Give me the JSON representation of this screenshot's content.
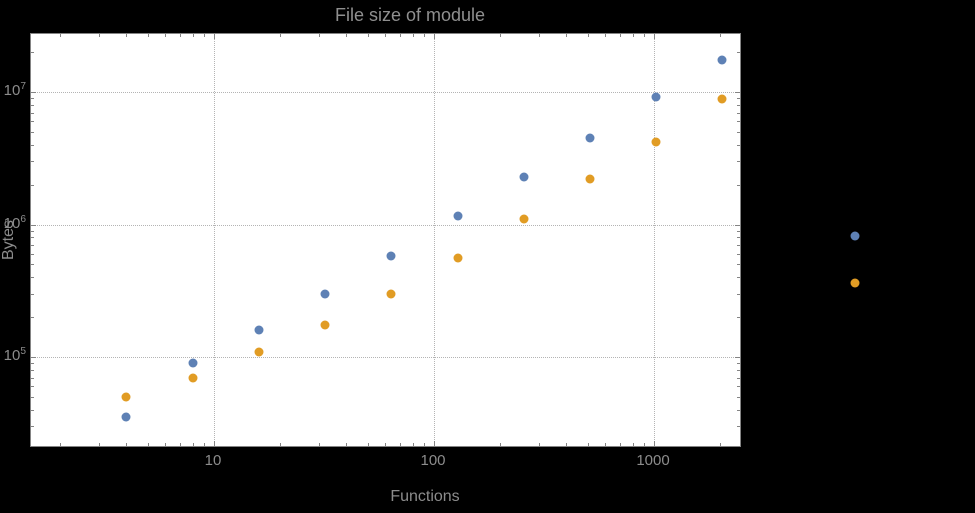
{
  "chart_data": {
    "type": "scatter",
    "title": "File size of module",
    "xlabel": "Functions",
    "ylabel": "Bytes",
    "x_scale": "log",
    "y_scale": "log",
    "grid": true,
    "x_ticks": [
      10,
      100,
      1000
    ],
    "y_tick_exponents": [
      5,
      6,
      7
    ],
    "xlim_log10": [
      0.17,
      3.4
    ],
    "ylim_log10": [
      4.35,
      7.45
    ],
    "x": [
      4,
      8,
      16,
      32,
      64,
      128,
      256,
      512,
      1024,
      2048
    ],
    "series": [
      {
        "name": "series-1-blue",
        "color": "#5e81b5",
        "values": [
          35000,
          90000,
          160000,
          300000,
          580000,
          1150000,
          2300000,
          4500000,
          9200000,
          17500000
        ]
      },
      {
        "name": "series-2-orange",
        "color": "#e19c24",
        "values": [
          50000,
          70000,
          110000,
          175000,
          300000,
          560000,
          1100000,
          2200000,
          4200000,
          8800000
        ]
      }
    ],
    "legend": {
      "position": "right-of-plot",
      "marker_colors": [
        "#5e81b5",
        "#e19c24"
      ]
    }
  },
  "colors": {
    "background": "#000000",
    "panel": "#ffffff",
    "frame": "#848484",
    "grid": "#b4b4b4",
    "labels": "#8c8c8c",
    "title": "#8f8f8f"
  }
}
